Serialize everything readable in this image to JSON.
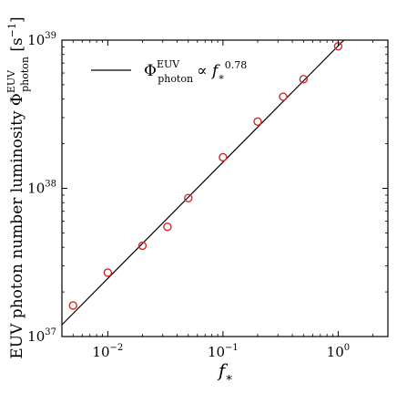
{
  "chart_data": {
    "type": "scatter",
    "title": "",
    "xscale": "log",
    "yscale": "log",
    "xlim": [
      0.004,
      2.7
    ],
    "ylim": [
      1e+37,
      1e+39
    ],
    "xlabel": "f*",
    "ylabel": "EUV photon number luminosity Φ_photon^EUV [s⁻¹]",
    "grid": false,
    "legend": {
      "placement": "top-left"
    },
    "x_ticks": [
      {
        "value": 0.01,
        "base": "10",
        "exp": "−2"
      },
      {
        "value": 0.1,
        "base": "10",
        "exp": "−1"
      },
      {
        "value": 1,
        "base": "10",
        "exp": "0"
      }
    ],
    "y_ticks": [
      {
        "value": 1e+37,
        "base": "10",
        "exp": "37"
      },
      {
        "value": 1e+38,
        "base": "10",
        "exp": "38"
      },
      {
        "value": 1e+39,
        "base": "10",
        "exp": "39"
      }
    ],
    "series": [
      {
        "kind": "points",
        "marker": "open-circle",
        "color": "#d62728",
        "x": [
          0.005,
          0.01,
          0.02,
          0.033,
          0.05,
          0.1,
          0.2,
          0.333,
          0.5,
          1.0
        ],
        "y": [
          1.62e+37,
          2.7e+37,
          4.1e+37,
          5.5e+37,
          8.6e+37,
          1.62e+38,
          2.82e+38,
          4.15e+38,
          5.45e+38,
          9.1e+38
        ]
      },
      {
        "kind": "fit-line",
        "color": "#000000",
        "label": "Φ_photon^EUV ∝ f*^0.78",
        "slope": 0.78,
        "x": [
          0.004,
          1.12
        ],
        "y": [
          1.2e+37,
          1e+39
        ]
      }
    ]
  }
}
